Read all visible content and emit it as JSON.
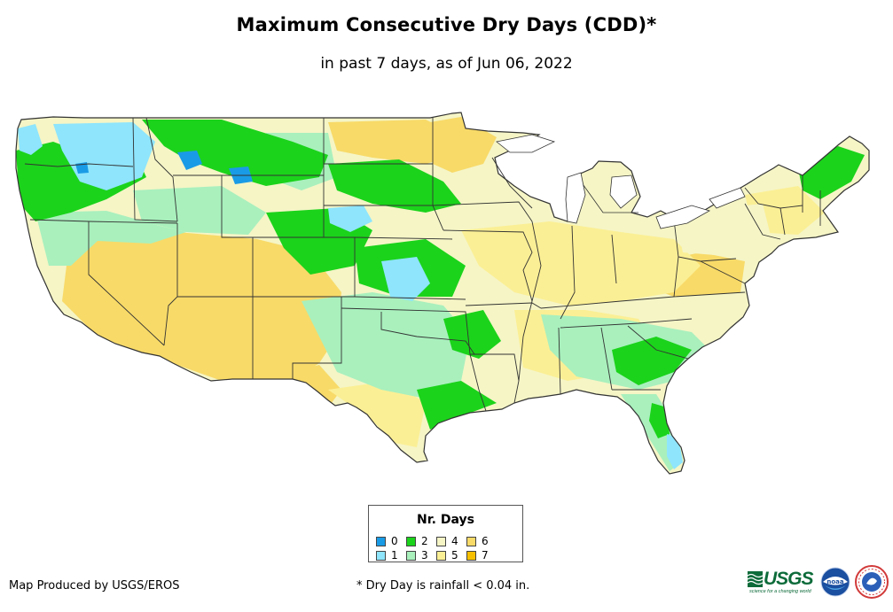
{
  "title": "Maximum Consecutive Dry Days (CDD)*",
  "subtitle": "in past 7 days, as of Jun 06, 2022",
  "legend": {
    "title": "Nr. Days",
    "items": [
      {
        "label": "0",
        "color": "#1a9be6"
      },
      {
        "label": "1",
        "color": "#8ee5fc"
      },
      {
        "label": "2",
        "color": "#1bd31b"
      },
      {
        "label": "3",
        "color": "#a9f0bd"
      },
      {
        "label": "4",
        "color": "#f5f5c6"
      },
      {
        "label": "5",
        "color": "#fbef95"
      },
      {
        "label": "6",
        "color": "#f8da68"
      },
      {
        "label": "7",
        "color": "#f6c000"
      }
    ]
  },
  "footer": {
    "producer": "Map Produced by USGS/EROS",
    "dry_day_note": "* Dry Day is rainfall < 0.04 in."
  },
  "logos": {
    "usgs_text": "USGS",
    "usgs_tagline": "science for a changing world",
    "noaa_text": "noaa",
    "usgs_color": "#0d6b3a"
  }
}
